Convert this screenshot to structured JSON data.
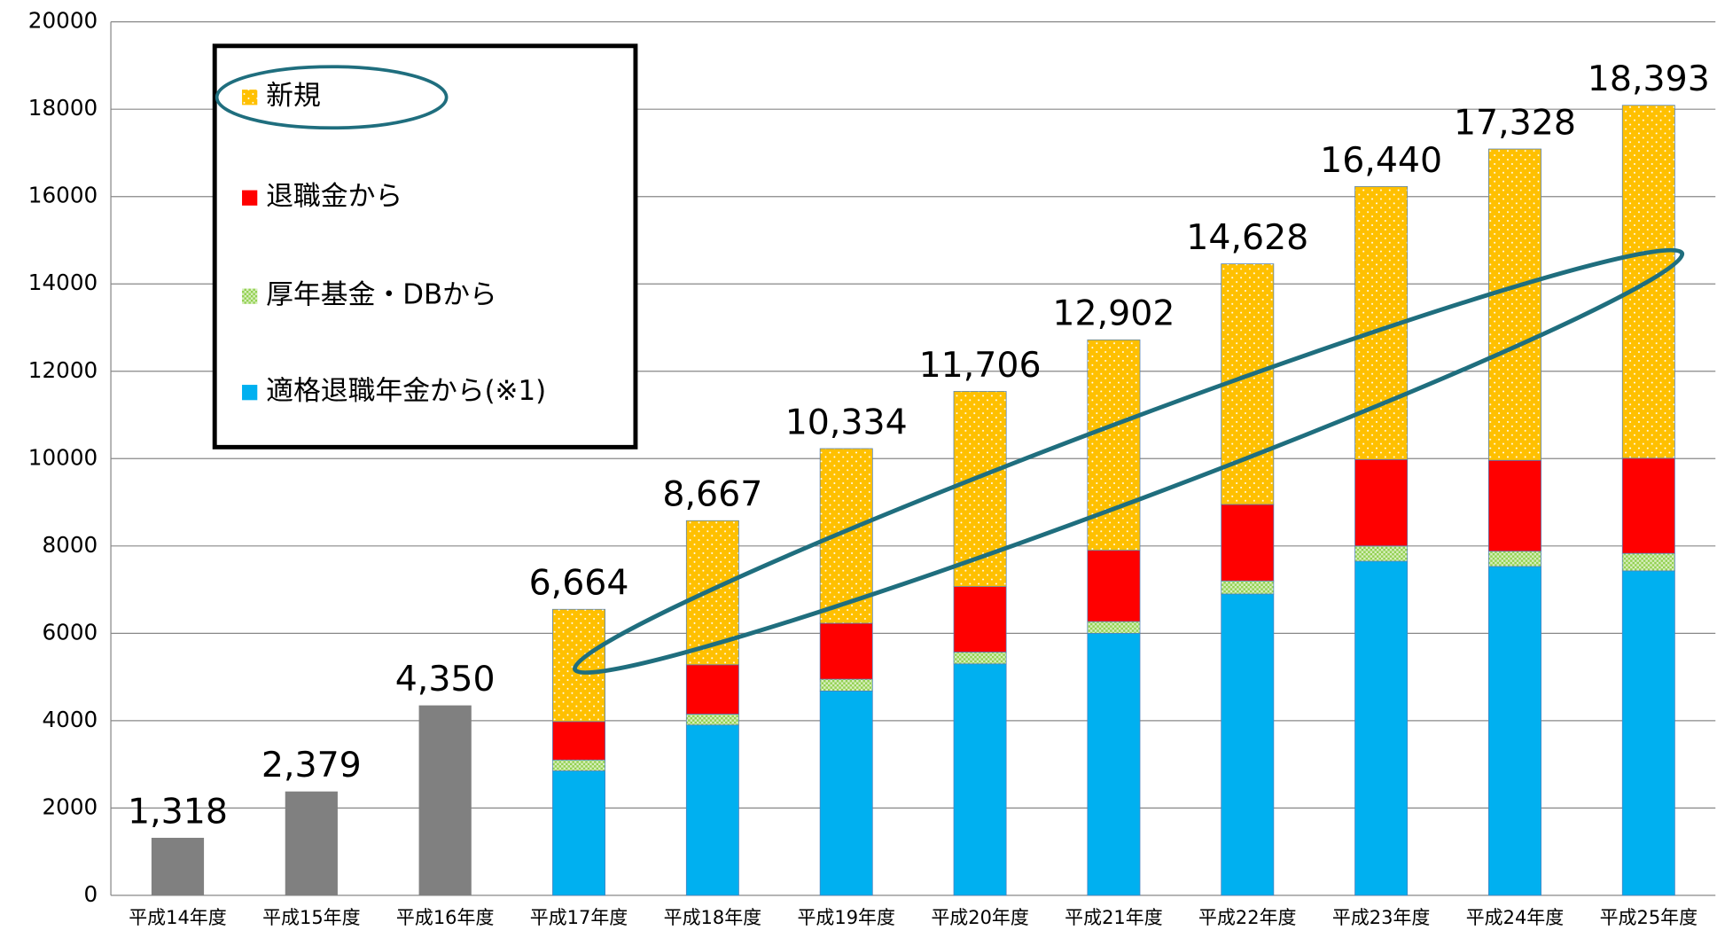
{
  "chart_data": {
    "type": "stacked_bar",
    "categories": [
      "平成14年度",
      "平成15年度",
      "平成16年度",
      "平成17年度",
      "平成18年度",
      "平成19年度",
      "平成20年度",
      "平成21年度",
      "平成22年度",
      "平成23年度",
      "平成24年度",
      "平成25年度"
    ],
    "series": [
      {
        "color": "#808080",
        "values": [
          1318,
          2379,
          4350,
          null,
          null,
          null,
          null,
          null,
          null,
          null,
          null,
          null
        ]
      },
      {
        "name": "適格退職年金から(※1)",
        "color": "#00B0F0",
        "values": [
          null,
          null,
          null,
          2850,
          3900,
          4680,
          5300,
          6000,
          6900,
          7650,
          7530,
          7430
        ]
      },
      {
        "name": "厚年基金・DBから",
        "color": "#92D050",
        "values": [
          null,
          null,
          null,
          250,
          250,
          270,
          270,
          270,
          300,
          350,
          350,
          400
        ]
      },
      {
        "name": "退職金から",
        "color": "#FF0000",
        "values": [
          null,
          null,
          null,
          880,
          1130,
          1280,
          1500,
          1630,
          1750,
          1980,
          2080,
          2180
        ]
      },
      {
        "name": "新規",
        "color": "#FFC000",
        "values": [
          null,
          null,
          null,
          2570,
          3300,
          4000,
          4470,
          4820,
          5510,
          6250,
          7130,
          8080
        ]
      }
    ],
    "totals": {
      "values": [
        1318,
        2379,
        4350,
        6664,
        8667,
        10334,
        11706,
        12902,
        14628,
        16440,
        17328,
        18393
      ],
      "value_labels": [
        "1,318",
        "2,379",
        "4,350",
        "6,664",
        "8,667",
        "10,334",
        "11,706",
        "12,902",
        "14,628",
        "16,440",
        "17,328",
        "18,393"
      ]
    },
    "ylim": [
      0,
      20000
    ],
    "yticks": [
      0,
      2000,
      4000,
      6000,
      8000,
      10000,
      12000,
      14000,
      16000,
      18000,
      20000
    ],
    "grid": true
  }
}
